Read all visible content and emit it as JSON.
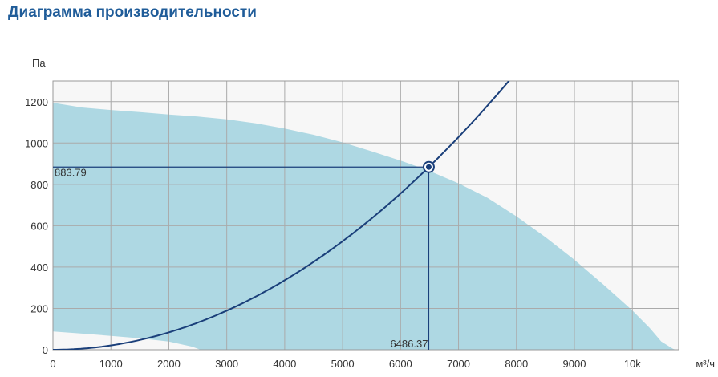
{
  "title": "Диаграмма производительности",
  "chart_data": {
    "type": "area",
    "title": "Диаграмма производительности",
    "ylabel": "Па",
    "xlabel": "м³/ч",
    "xlim": [
      0,
      10800
    ],
    "ylim": [
      0,
      1300
    ],
    "x_ticks": [
      0,
      1000,
      2000,
      3000,
      4000,
      5000,
      6000,
      7000,
      8000,
      9000,
      10000
    ],
    "x_tick_labels": [
      "0",
      "1000",
      "2000",
      "3000",
      "4000",
      "5000",
      "6000",
      "7000",
      "8000",
      "9000",
      "10k"
    ],
    "y_ticks": [
      0,
      200,
      400,
      600,
      800,
      1000,
      1200
    ],
    "y_tick_labels": [
      "0",
      "200",
      "400",
      "600",
      "800",
      "1000",
      "1200"
    ],
    "grid": true,
    "colors": {
      "area": "#aed8e3",
      "curve": "#1a3f7a",
      "grid": "#aaaaaa",
      "plot_bg": "#f7f7f7",
      "title": "#1f5c99"
    },
    "operating_range": {
      "upper": [
        {
          "x": 0,
          "y": 1195
        },
        {
          "x": 500,
          "y": 1172
        },
        {
          "x": 1000,
          "y": 1160
        },
        {
          "x": 1500,
          "y": 1150
        },
        {
          "x": 2000,
          "y": 1138
        },
        {
          "x": 2500,
          "y": 1128
        },
        {
          "x": 3000,
          "y": 1115
        },
        {
          "x": 3500,
          "y": 1095
        },
        {
          "x": 4000,
          "y": 1070
        },
        {
          "x": 4500,
          "y": 1040
        },
        {
          "x": 5000,
          "y": 1003
        },
        {
          "x": 5500,
          "y": 960
        },
        {
          "x": 6000,
          "y": 915
        },
        {
          "x": 6500,
          "y": 865
        },
        {
          "x": 7000,
          "y": 805
        },
        {
          "x": 7500,
          "y": 735
        },
        {
          "x": 8000,
          "y": 645
        },
        {
          "x": 8500,
          "y": 545
        },
        {
          "x": 9000,
          "y": 435
        },
        {
          "x": 9500,
          "y": 315
        },
        {
          "x": 10000,
          "y": 190
        },
        {
          "x": 10300,
          "y": 105
        },
        {
          "x": 10500,
          "y": 40
        },
        {
          "x": 10700,
          "y": 5
        },
        {
          "x": 10750,
          "y": 0
        }
      ],
      "lower": [
        {
          "x": 0,
          "y": 88
        },
        {
          "x": 500,
          "y": 78
        },
        {
          "x": 1000,
          "y": 67
        },
        {
          "x": 1500,
          "y": 55
        },
        {
          "x": 2000,
          "y": 40
        },
        {
          "x": 2400,
          "y": 15
        },
        {
          "x": 2550,
          "y": 0
        }
      ]
    },
    "system_curve": {
      "name": "system curve",
      "function": "y = k * x^2",
      "k": 2.1e-05
    },
    "operating_point": {
      "x": 6486.37,
      "y": 883.79
    },
    "operating_point_labels": {
      "x": "6486.37",
      "y": "883.79"
    }
  }
}
